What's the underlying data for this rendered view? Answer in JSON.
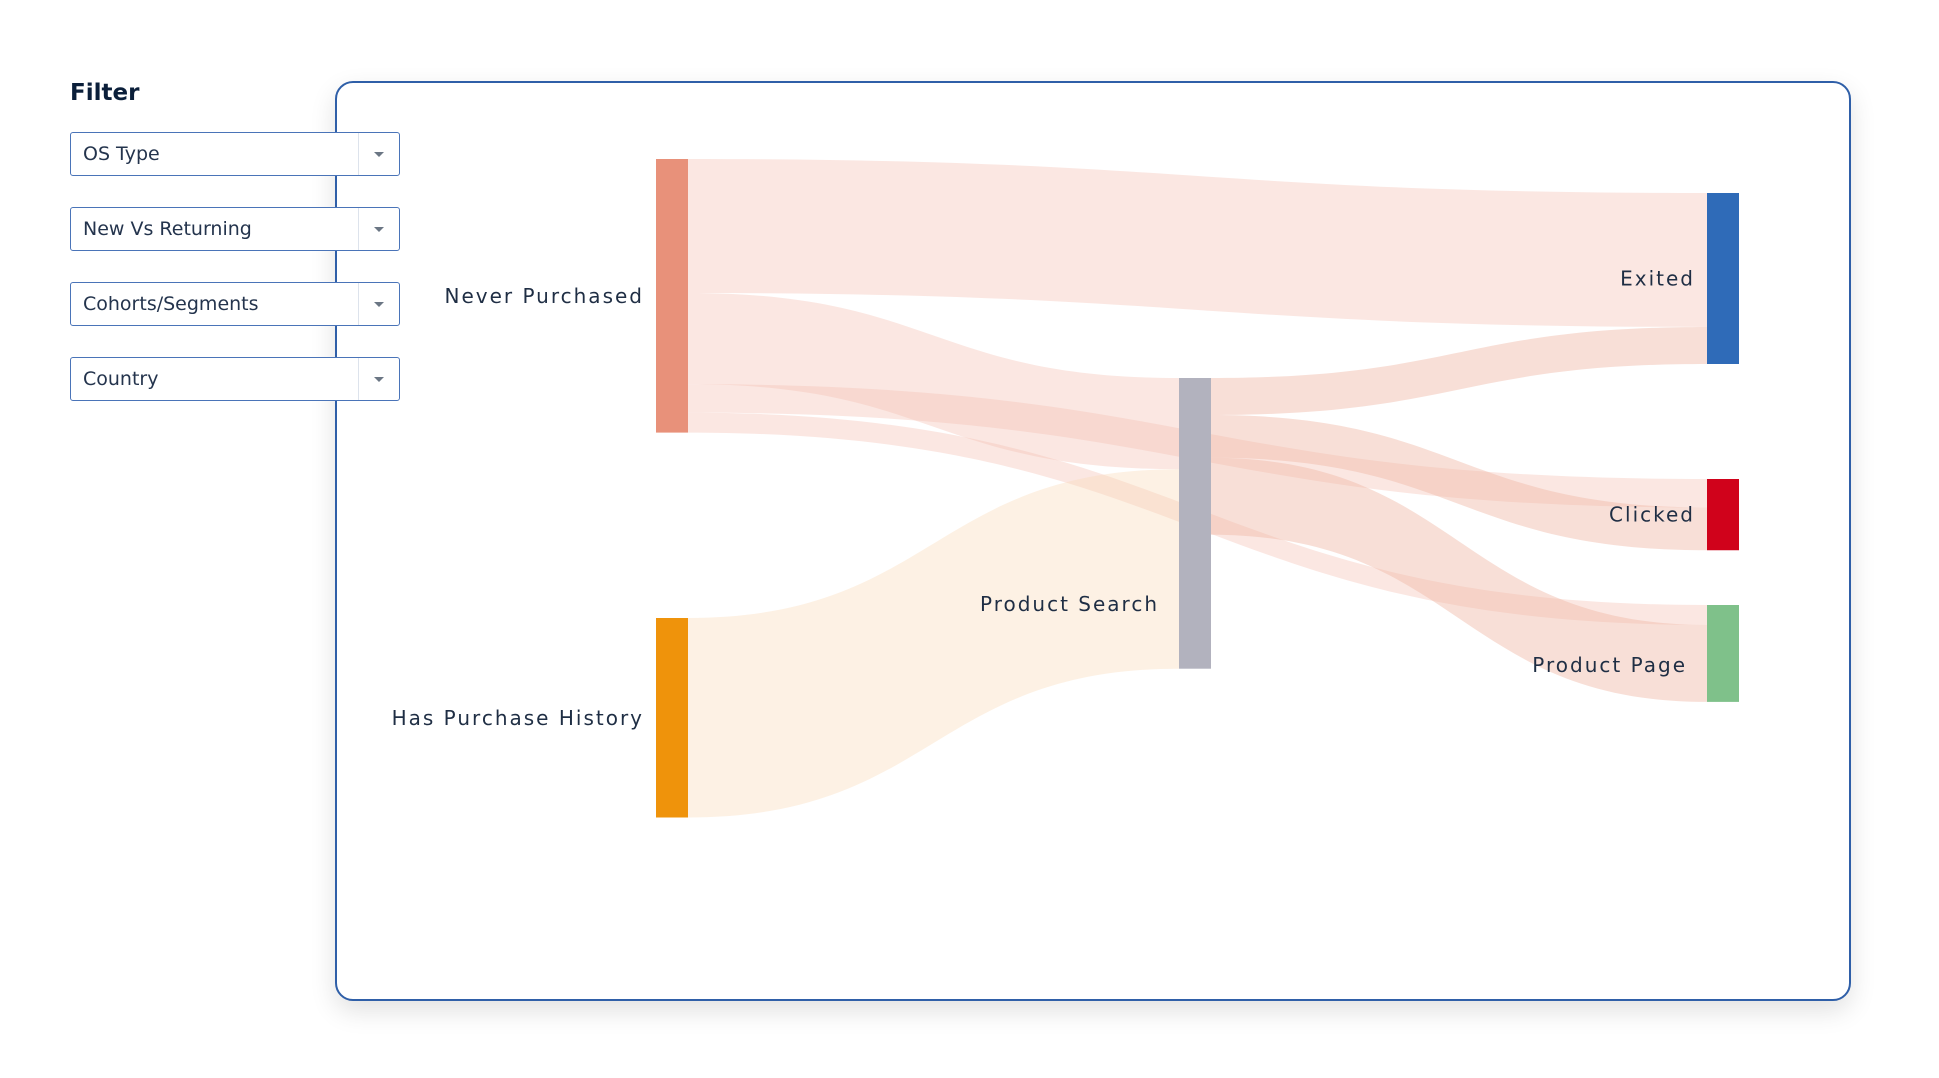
{
  "filter": {
    "title": "Filter",
    "dropdowns": [
      {
        "label": "OS Type"
      },
      {
        "label": "New Vs Returning"
      },
      {
        "label": "Cohorts/Segments"
      },
      {
        "label": "Country"
      }
    ]
  },
  "chart_data": {
    "type": "sankey",
    "nodes": [
      {
        "id": "never",
        "label": "Never Purchased",
        "color": "#e8917a"
      },
      {
        "id": "has",
        "label": "Has Purchase History",
        "color": "#ef930b"
      },
      {
        "id": "search",
        "label": "Product Search",
        "color": "#b2b2be"
      },
      {
        "id": "exited",
        "label": "Exited",
        "color": "#2f6bb8"
      },
      {
        "id": "clicked",
        "label": "Clicked",
        "color": "#d0021b"
      },
      {
        "id": "page",
        "label": "Product Page",
        "color": "#7fc18a"
      }
    ],
    "links": [
      {
        "source": "never",
        "target": "exited",
        "value": 47
      },
      {
        "source": "never",
        "target": "search",
        "value": 32
      },
      {
        "source": "never",
        "target": "clicked",
        "value": 10
      },
      {
        "source": "never",
        "target": "page",
        "value": 7
      },
      {
        "source": "has",
        "target": "search",
        "value": 70
      },
      {
        "source": "search",
        "target": "exited",
        "value": 13
      },
      {
        "source": "search",
        "target": "clicked",
        "value": 15
      },
      {
        "source": "search",
        "target": "page",
        "value": 27
      }
    ],
    "colors": {
      "never_link": "#f4c4b6",
      "has_link": "#fbdcbb",
      "search_link": "#f0b9a6",
      "frame": "#2f5fa8"
    }
  }
}
